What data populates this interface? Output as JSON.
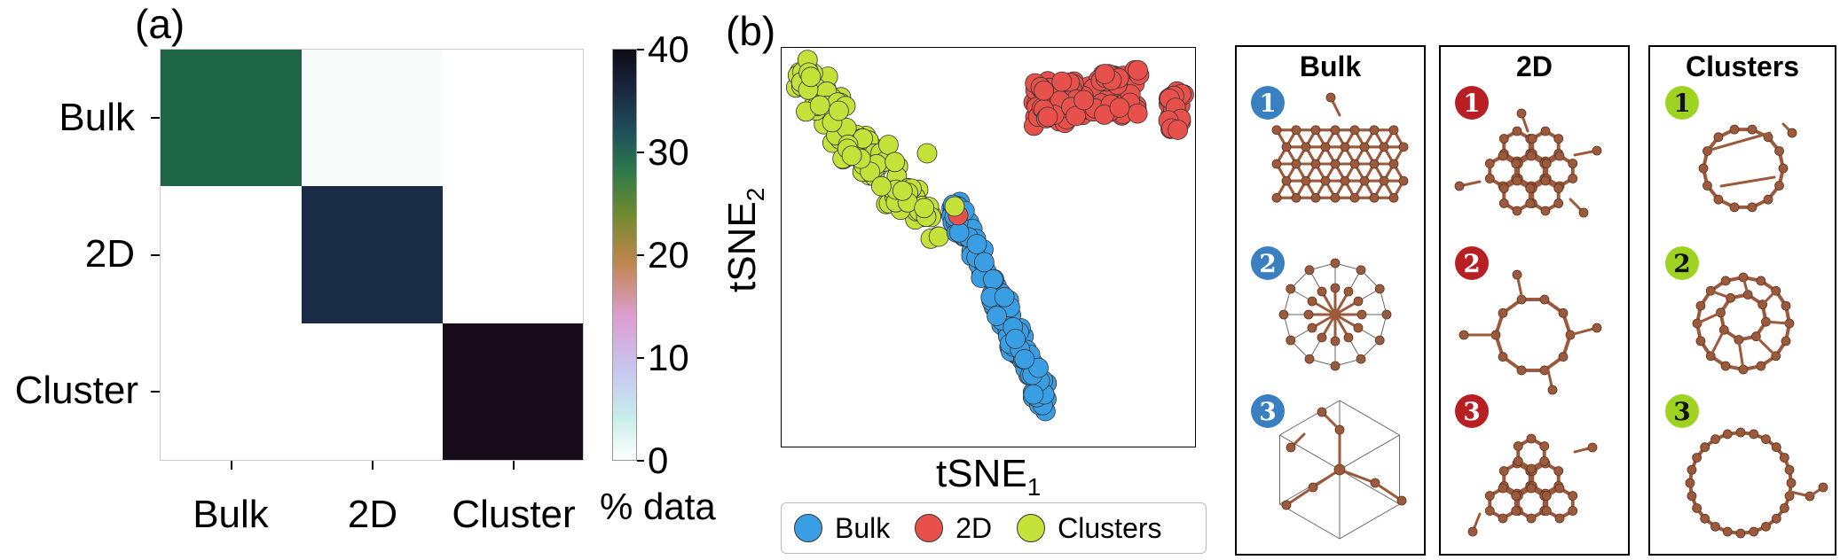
{
  "chart_data": [
    {
      "type": "heatmap",
      "panel_label": "(a)",
      "rows": [
        "Bulk",
        "2D",
        "Cluster"
      ],
      "cols": [
        "Bulk",
        "2D",
        "Cluster"
      ],
      "values": [
        [
          30,
          0.5,
          0
        ],
        [
          0,
          34,
          0
        ],
        [
          0,
          0,
          39
        ]
      ],
      "colorbar": {
        "label": "% data",
        "ticks": [
          "0",
          "10",
          "20",
          "30",
          "40"
        ],
        "range": [
          0,
          40
        ]
      }
    },
    {
      "type": "scatter",
      "panel_label": "(b)",
      "xlabel": "tSNE",
      "xlabel_sub": "1",
      "ylabel": "tSNE",
      "ylabel_sub": "2",
      "legend_placement": "bottom",
      "series": [
        {
          "name": "Bulk",
          "color": "#3a9ee4"
        },
        {
          "name": "2D",
          "color": "#e8504c"
        },
        {
          "name": "Clusters",
          "color": "#c4e23a"
        }
      ]
    }
  ],
  "structures": {
    "panels": [
      {
        "title": "Bulk",
        "badge_color": "#3a7fc0",
        "badges": [
          "1",
          "2",
          "3"
        ]
      },
      {
        "title": "2D",
        "badge_color": "#b81f24",
        "badges": [
          "1",
          "2",
          "3"
        ]
      },
      {
        "title": "Clusters",
        "badge_color": "#9fd321",
        "badges": [
          "1",
          "2",
          "3"
        ]
      }
    ],
    "atom_color": "#9c5a3c"
  }
}
